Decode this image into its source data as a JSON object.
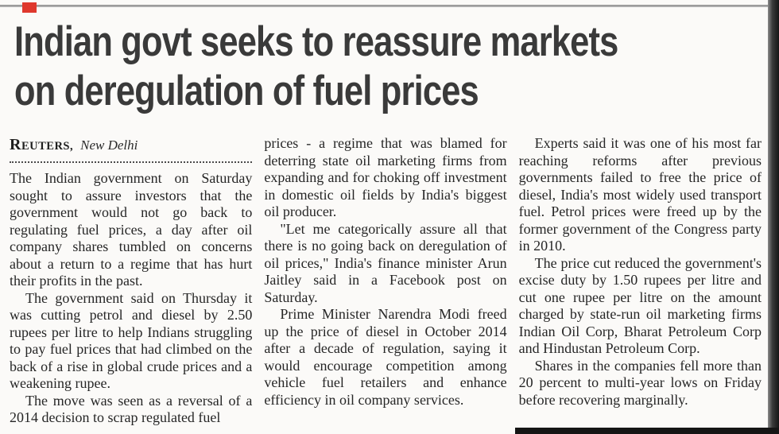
{
  "page": {
    "colors": {
      "paper": "#fbfaf8",
      "body_ink": "#262626",
      "headline_ink": "#3a3a3a",
      "top_rule": "#9a9a9a",
      "red_mark": "#df382d",
      "scan_edge": "#151515"
    }
  },
  "article": {
    "headline": {
      "line1": "Indian govt seeks to reassure markets",
      "line2": "on deregulation of fuel prices"
    },
    "byline": {
      "agency": "Reuters,",
      "location": "New Delhi"
    },
    "columns": [
      {
        "paragraphs": [
          {
            "indent": false,
            "text": "The Indian government on Saturday sought to assure investors that the government would not go back to regulating fuel prices, a day after oil company shares tumbled on concerns about a return to a regime that has hurt their profits in the past."
          },
          {
            "indent": true,
            "text": "The government said on Thursday it was cutting petrol and diesel by 2.50 rupees per litre to help Indians struggling to pay fuel prices that had climbed on the back of a rise in global crude prices and a weakening rupee."
          },
          {
            "indent": true,
            "text": "The move was seen as a reversal of a 2014 decision to scrap regulated fuel"
          }
        ]
      },
      {
        "paragraphs": [
          {
            "indent": false,
            "text": "prices - a regime that was blamed for deterring state oil marketing firms from expanding and for choking off investment in domestic oil fields by India's biggest oil producer."
          },
          {
            "indent": true,
            "text": "\"Let me categorically assure all that there is no going back on deregulation of oil prices,\" India's finance minister Arun Jaitley said in a Facebook post on Saturday."
          },
          {
            "indent": true,
            "text": "Prime Minister Narendra Modi freed up the price of diesel in October 2014 after a decade of regulation, saying it would encourage competition among vehicle fuel retailers and enhance efficiency in oil company services."
          }
        ]
      },
      {
        "paragraphs": [
          {
            "indent": true,
            "text": "Experts said it was one of his most far reaching reforms after previous governments failed to free the price of diesel, India's most widely used transport fuel. Petrol prices were freed up by the former government of the Congress party in 2010."
          },
          {
            "indent": true,
            "text": "The price cut reduced the government's excise duty by 1.50 rupees per litre and cut one rupee per litre on the amount charged by state-run oil marketing firms Indian Oil Corp, Bharat Petroleum Corp and Hindustan Petroleum Corp."
          },
          {
            "indent": true,
            "text": "Shares in the companies fell more than 20 percent to multi-year lows on Friday before recovering marginally."
          }
        ]
      }
    ]
  }
}
